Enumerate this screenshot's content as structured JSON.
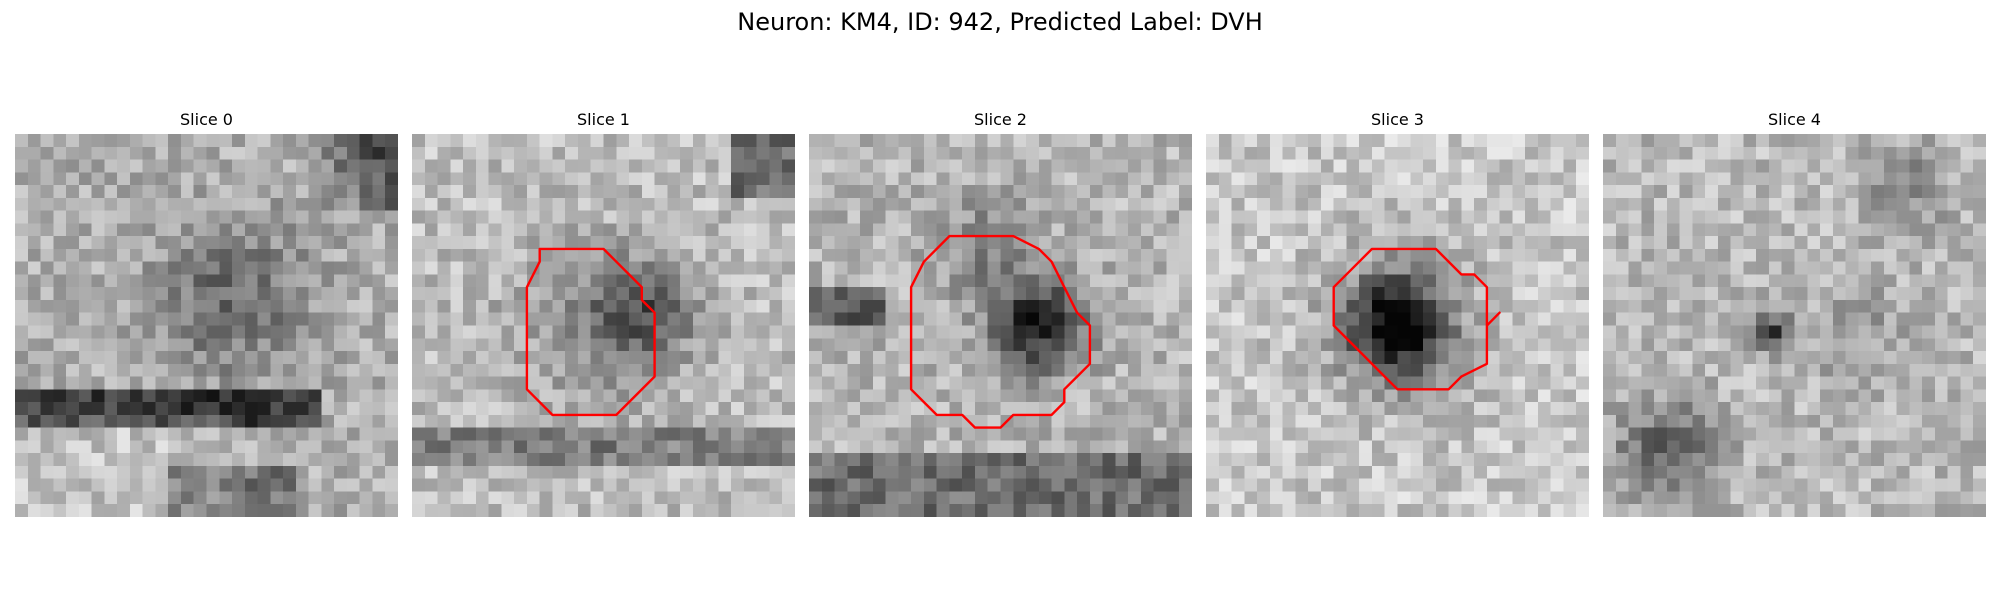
{
  "figure": {
    "title": "Neuron: KM4, ID: 942, Predicted Label: DVH"
  },
  "style": {
    "contour_color": "#ff0000"
  },
  "panels": [
    {
      "title": "Slice 0",
      "contour": null
    },
    {
      "title": "Slice 1",
      "contour": [
        [
          10,
          9
        ],
        [
          15,
          9
        ],
        [
          16,
          10
        ],
        [
          17,
          11
        ],
        [
          18,
          12
        ],
        [
          18,
          13
        ],
        [
          19,
          14
        ],
        [
          19,
          19
        ],
        [
          16,
          22
        ],
        [
          11,
          22
        ],
        [
          9,
          20
        ],
        [
          9,
          12
        ],
        [
          10,
          10
        ]
      ]
    },
    {
      "title": "Slice 2",
      "contour": [
        [
          11,
          8
        ],
        [
          16,
          8
        ],
        [
          18,
          9
        ],
        [
          19,
          10
        ],
        [
          20,
          12
        ],
        [
          21,
          14
        ],
        [
          22,
          15
        ],
        [
          22,
          18
        ],
        [
          21,
          19
        ],
        [
          20,
          20
        ],
        [
          20,
          21
        ],
        [
          19,
          22
        ],
        [
          16,
          22
        ],
        [
          15,
          23
        ],
        [
          13,
          23
        ],
        [
          12,
          22
        ],
        [
          10,
          22
        ],
        [
          9,
          21
        ],
        [
          8,
          20
        ],
        [
          8,
          12
        ],
        [
          9,
          10
        ]
      ]
    },
    {
      "title": "Slice 3",
      "contour": [
        [
          13,
          9
        ],
        [
          18,
          9
        ],
        [
          20,
          11
        ],
        [
          21,
          11
        ],
        [
          22,
          12
        ],
        [
          22,
          14
        ],
        [
          22,
          15
        ],
        [
          23,
          14
        ],
        [
          22,
          15
        ],
        [
          22,
          18
        ],
        [
          20,
          19
        ],
        [
          19,
          20
        ],
        [
          15,
          20
        ],
        [
          14,
          19
        ],
        [
          12,
          17
        ],
        [
          10,
          15
        ],
        [
          10,
          12
        ],
        [
          12,
          10
        ]
      ]
    },
    {
      "title": "Slice 4",
      "contour": null
    }
  ]
}
